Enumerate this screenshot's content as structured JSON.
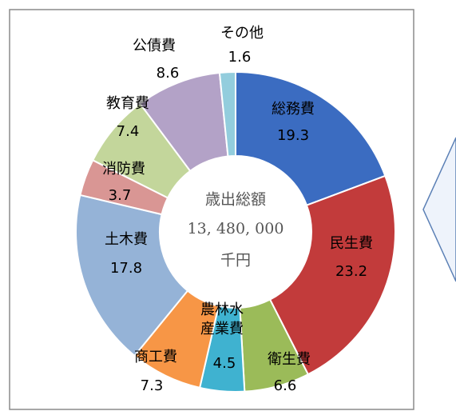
{
  "chart_data": {
    "type": "donut",
    "categories": [
      "総務費",
      "民生費",
      "衛生費",
      "農林水産業費",
      "商工費",
      "土木費",
      "消防費",
      "教育費",
      "公債費",
      "その他"
    ],
    "values": [
      19.3,
      23.2,
      6.6,
      4.5,
      7.3,
      17.8,
      3.7,
      7.4,
      8.6,
      1.6
    ],
    "colors": [
      "#3b6cc1",
      "#c23b3b",
      "#9bbb59",
      "#3fb2d0",
      "#f79646",
      "#95b3d7",
      "#d99694",
      "#c3d69b",
      "#b3a2c7",
      "#93cddd"
    ],
    "center_text": [
      "歳出総額",
      "13, 480, 000",
      "千円"
    ]
  }
}
